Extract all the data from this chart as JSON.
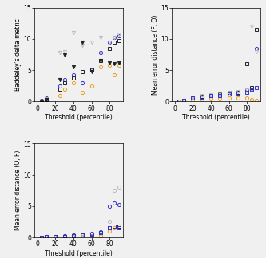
{
  "subplot1": {
    "ylabel": "Baddeley's delta metric",
    "xlabel": "Threshold (percentile)",
    "ylim": [
      0,
      15
    ],
    "xlim": [
      -3,
      95
    ],
    "xticks": [
      0,
      20,
      40,
      60,
      80
    ],
    "yticks": [
      0,
      5,
      10,
      15
    ],
    "series": [
      {
        "marker": "o",
        "color": "#E8A020",
        "filled": false,
        "x": [
          5,
          10,
          25,
          30,
          40,
          50,
          60,
          70,
          80,
          85,
          90
        ],
        "y": [
          0.1,
          0.3,
          1.0,
          2.0,
          3.0,
          1.5,
          2.5,
          5.5,
          5.8,
          4.3,
          5.8
        ]
      },
      {
        "marker": "o",
        "color": "#3333CC",
        "filled": false,
        "x": [
          5,
          10,
          25,
          30,
          40,
          50,
          60,
          70,
          80,
          85,
          90
        ],
        "y": [
          0.2,
          0.5,
          2.5,
          3.5,
          4.2,
          3.0,
          5.0,
          7.8,
          9.5,
          10.2,
          10.5
        ]
      },
      {
        "marker": "s",
        "color": "#222222",
        "filled": false,
        "x": [
          5,
          10,
          25,
          30,
          40,
          50,
          60,
          70,
          80,
          85,
          90
        ],
        "y": [
          0.1,
          0.3,
          2.0,
          3.0,
          3.8,
          4.8,
          5.2,
          6.5,
          8.5,
          9.5,
          9.8
        ]
      },
      {
        "marker": "v",
        "color": "#BBBBBB",
        "filled": false,
        "x": [
          5,
          10,
          25,
          30,
          40,
          50,
          60,
          70,
          80,
          85,
          90
        ],
        "y": [
          0.1,
          0.4,
          7.8,
          8.0,
          11.0,
          9.0,
          9.5,
          10.2,
          9.5,
          10.3,
          10.8
        ]
      },
      {
        "marker": "v",
        "color": "#222222",
        "filled": true,
        "x": [
          5,
          10,
          25,
          30,
          40,
          50,
          60,
          70,
          80,
          85,
          90
        ],
        "y": [
          0.1,
          0.3,
          3.5,
          7.5,
          5.5,
          9.5,
          4.8,
          6.5,
          6.2,
          6.0,
          6.2
        ]
      }
    ]
  },
  "subplot2": {
    "ylabel": "Mean error distance (F, O)",
    "xlabel": "Threshold (percentile)",
    "ylim": [
      0,
      15
    ],
    "xlim": [
      -3,
      95
    ],
    "xticks": [
      0,
      20,
      40,
      60,
      80
    ],
    "yticks": [
      0,
      5,
      10,
      15
    ],
    "series": [
      {
        "marker": "o",
        "color": "#E8A020",
        "filled": false,
        "x": [
          5,
          10,
          20,
          30,
          40,
          50,
          60,
          70,
          80,
          85,
          90
        ],
        "y": [
          0.1,
          0.1,
          0.2,
          0.3,
          0.4,
          0.4,
          0.5,
          0.5,
          0.5,
          0.3,
          0.2
        ]
      },
      {
        "marker": "o",
        "color": "#3333CC",
        "filled": false,
        "x": [
          5,
          10,
          20,
          30,
          40,
          50,
          60,
          70,
          80,
          85,
          90
        ],
        "y": [
          0.1,
          0.2,
          0.5,
          0.7,
          0.9,
          1.0,
          1.2,
          1.3,
          1.8,
          2.0,
          8.5
        ]
      },
      {
        "marker": "s",
        "color": "#222222",
        "filled": false,
        "x": [
          5,
          10,
          20,
          30,
          40,
          50,
          60,
          70,
          80,
          85,
          90
        ],
        "y": [
          0.1,
          0.2,
          0.6,
          0.8,
          1.0,
          1.2,
          1.4,
          1.5,
          6.0,
          2.2,
          11.5
        ]
      },
      {
        "marker": "v",
        "color": "#BBBBBB",
        "filled": false,
        "x": [
          5,
          10,
          20,
          30,
          40,
          50,
          60,
          70,
          80,
          85,
          90
        ],
        "y": [
          0.1,
          0.2,
          0.6,
          0.9,
          1.1,
          1.3,
          1.5,
          1.6,
          1.8,
          12.0,
          8.0
        ]
      },
      {
        "marker": "s",
        "color": "#3333CC",
        "filled": false,
        "x": [
          5,
          10,
          20,
          30,
          40,
          50,
          60,
          70,
          80,
          85,
          90
        ],
        "y": [
          0.1,
          0.2,
          0.5,
          0.7,
          0.9,
          1.0,
          1.2,
          1.3,
          1.5,
          1.8,
          2.2
        ]
      }
    ]
  },
  "subplot3": {
    "ylabel": "Mean error distance (O, F)",
    "xlabel": "Threshold (percentile)",
    "ylim": [
      0,
      15
    ],
    "xlim": [
      -3,
      95
    ],
    "xticks": [
      0,
      20,
      40,
      60,
      80
    ],
    "yticks": [
      0,
      5,
      10,
      15
    ],
    "series": [
      {
        "marker": "o",
        "color": "#E8A020",
        "filled": false,
        "x": [
          5,
          10,
          20,
          30,
          40,
          50,
          60,
          70,
          80,
          85,
          90
        ],
        "y": [
          0.05,
          0.1,
          0.1,
          0.15,
          0.2,
          0.2,
          0.3,
          0.3,
          1.0,
          1.5,
          1.8
        ]
      },
      {
        "marker": "o",
        "color": "#BBBBBB",
        "filled": false,
        "x": [
          5,
          10,
          20,
          30,
          40,
          50,
          60,
          70,
          80,
          85,
          90
        ],
        "y": [
          0.05,
          0.1,
          0.2,
          0.3,
          0.4,
          0.5,
          0.6,
          0.8,
          2.5,
          7.5,
          8.0
        ]
      },
      {
        "marker": "o",
        "color": "#3333CC",
        "filled": false,
        "x": [
          5,
          10,
          20,
          30,
          40,
          50,
          60,
          70,
          80,
          85,
          90
        ],
        "y": [
          0.05,
          0.1,
          0.2,
          0.3,
          0.4,
          0.4,
          0.6,
          0.9,
          5.0,
          5.5,
          5.2
        ]
      },
      {
        "marker": "s",
        "color": "#222222",
        "filled": false,
        "x": [
          5,
          10,
          20,
          30,
          40,
          50,
          60,
          70,
          80,
          85,
          90
        ],
        "y": [
          0.05,
          0.1,
          0.15,
          0.2,
          0.3,
          0.4,
          0.5,
          0.8,
          1.5,
          1.8,
          1.8
        ]
      },
      {
        "marker": "s",
        "color": "#3333CC",
        "filled": false,
        "x": [
          5,
          10,
          20,
          30,
          40,
          50,
          60,
          70,
          80,
          85,
          90
        ],
        "y": [
          0.05,
          0.1,
          0.15,
          0.2,
          0.3,
          0.4,
          0.5,
          0.8,
          1.5,
          1.8,
          1.5
        ]
      }
    ]
  },
  "figure": {
    "bg_color": "#F0F0F0",
    "plot_bg": "#F0F0F0"
  }
}
